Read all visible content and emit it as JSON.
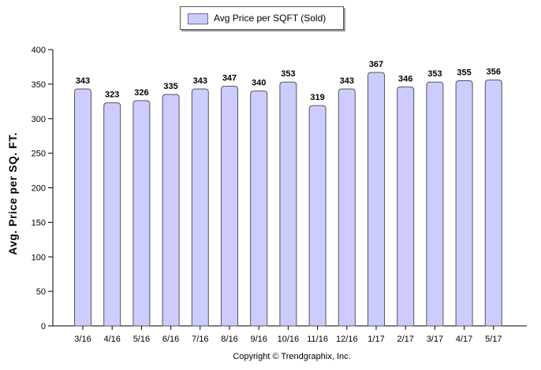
{
  "legend": {
    "label": "Avg Price per SQFT (Sold)"
  },
  "copyright": "Copyright © Trendgraphix, Inc.",
  "colors": {
    "bar_fill": "#ccccff",
    "bar_stroke": "#555555",
    "axis": "#000000"
  },
  "chart_data": {
    "type": "bar",
    "categories": [
      "3/16",
      "4/16",
      "5/16",
      "6/16",
      "7/16",
      "8/16",
      "9/16",
      "10/16",
      "11/16",
      "12/16",
      "1/17",
      "2/17",
      "3/17",
      "4/17",
      "5/17"
    ],
    "series": [
      {
        "name": "Avg Price per SQFT (Sold)",
        "values": [
          343,
          323,
          326,
          335,
          343,
          347,
          340,
          353,
          319,
          343,
          367,
          346,
          353,
          355,
          356
        ]
      }
    ],
    "title": "",
    "xlabel": "",
    "ylabel": "Avg. Price per SQ. FT.",
    "ylim": [
      0,
      400
    ],
    "yticks": [
      0,
      50,
      100,
      150,
      200,
      250,
      300,
      350,
      400
    ],
    "grid": false,
    "legend_position": "top-center",
    "data_labels": true
  }
}
